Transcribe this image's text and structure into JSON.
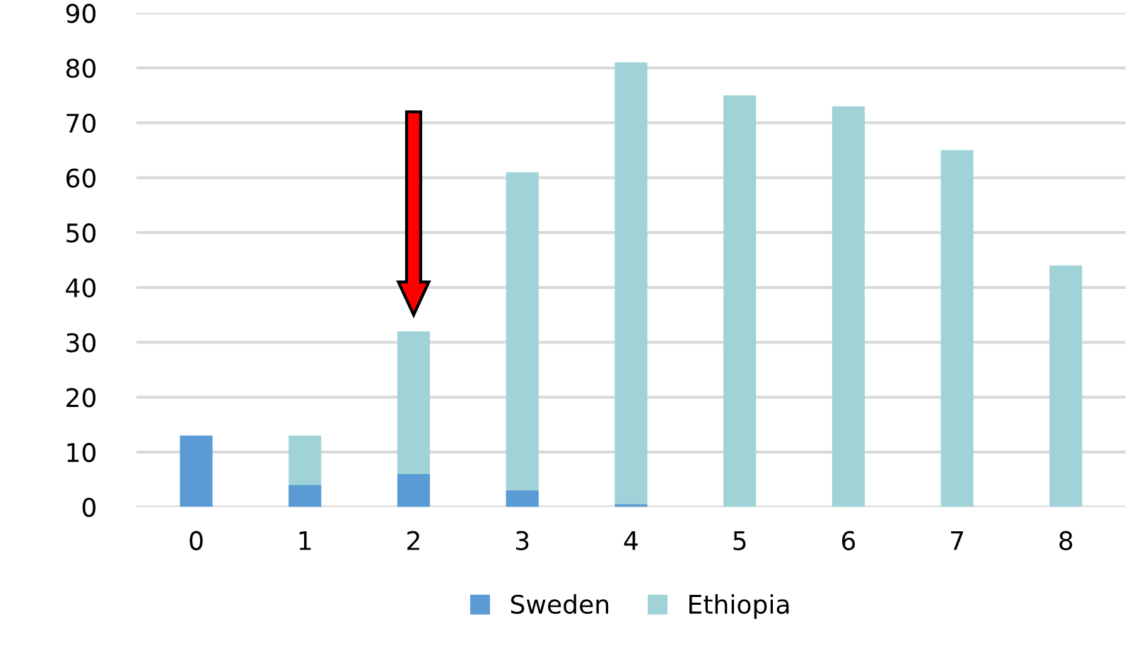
{
  "chart_data": {
    "type": "bar",
    "categories": [
      "0",
      "1",
      "2",
      "3",
      "4",
      "5",
      "6",
      "7",
      "8"
    ],
    "series": [
      {
        "name": "Ethiopia",
        "color": "#a0d3d7",
        "values": [
          null,
          13,
          32,
          61,
          81,
          75,
          73,
          65,
          44
        ]
      },
      {
        "name": "Sweden",
        "color": "#5b9bd5",
        "values": [
          13,
          4,
          6,
          3,
          0.5,
          0,
          0,
          0,
          0
        ]
      }
    ],
    "ylim": [
      0,
      90
    ],
    "yticks": [
      0,
      10,
      20,
      30,
      40,
      50,
      60,
      70,
      80,
      90
    ],
    "grid": "y",
    "legend": "bottom"
  }
}
